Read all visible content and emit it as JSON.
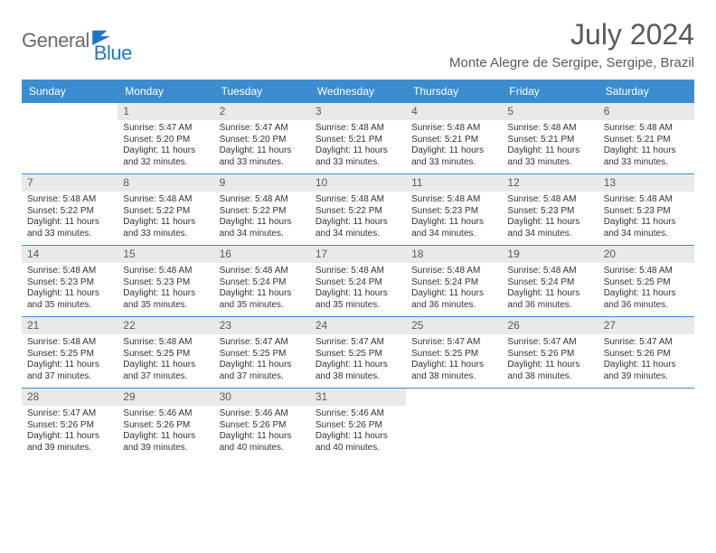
{
  "brand": {
    "part1": "General",
    "part2": "Blue"
  },
  "title": "July 2024",
  "location": "Monte Alegre de Sergipe, Sergipe, Brazil",
  "colors": {
    "header_bg": "#3b8dd0",
    "header_text": "#ffffff",
    "daynum_bg": "#e9e9e9",
    "text": "#333333",
    "rule": "#3b8dd0",
    "brand_gray": "#6b6b6b",
    "brand_blue": "#1f77c4"
  },
  "weekdays": [
    "Sunday",
    "Monday",
    "Tuesday",
    "Wednesday",
    "Thursday",
    "Friday",
    "Saturday"
  ],
  "weeks": [
    [
      {
        "n": "",
        "lines": []
      },
      {
        "n": "1",
        "lines": [
          "Sunrise: 5:47 AM",
          "Sunset: 5:20 PM",
          "Daylight: 11 hours and 32 minutes."
        ]
      },
      {
        "n": "2",
        "lines": [
          "Sunrise: 5:47 AM",
          "Sunset: 5:20 PM",
          "Daylight: 11 hours and 33 minutes."
        ]
      },
      {
        "n": "3",
        "lines": [
          "Sunrise: 5:48 AM",
          "Sunset: 5:21 PM",
          "Daylight: 11 hours and 33 minutes."
        ]
      },
      {
        "n": "4",
        "lines": [
          "Sunrise: 5:48 AM",
          "Sunset: 5:21 PM",
          "Daylight: 11 hours and 33 minutes."
        ]
      },
      {
        "n": "5",
        "lines": [
          "Sunrise: 5:48 AM",
          "Sunset: 5:21 PM",
          "Daylight: 11 hours and 33 minutes."
        ]
      },
      {
        "n": "6",
        "lines": [
          "Sunrise: 5:48 AM",
          "Sunset: 5:21 PM",
          "Daylight: 11 hours and 33 minutes."
        ]
      }
    ],
    [
      {
        "n": "7",
        "lines": [
          "Sunrise: 5:48 AM",
          "Sunset: 5:22 PM",
          "Daylight: 11 hours and 33 minutes."
        ]
      },
      {
        "n": "8",
        "lines": [
          "Sunrise: 5:48 AM",
          "Sunset: 5:22 PM",
          "Daylight: 11 hours and 33 minutes."
        ]
      },
      {
        "n": "9",
        "lines": [
          "Sunrise: 5:48 AM",
          "Sunset: 5:22 PM",
          "Daylight: 11 hours and 34 minutes."
        ]
      },
      {
        "n": "10",
        "lines": [
          "Sunrise: 5:48 AM",
          "Sunset: 5:22 PM",
          "Daylight: 11 hours and 34 minutes."
        ]
      },
      {
        "n": "11",
        "lines": [
          "Sunrise: 5:48 AM",
          "Sunset: 5:23 PM",
          "Daylight: 11 hours and 34 minutes."
        ]
      },
      {
        "n": "12",
        "lines": [
          "Sunrise: 5:48 AM",
          "Sunset: 5:23 PM",
          "Daylight: 11 hours and 34 minutes."
        ]
      },
      {
        "n": "13",
        "lines": [
          "Sunrise: 5:48 AM",
          "Sunset: 5:23 PM",
          "Daylight: 11 hours and 34 minutes."
        ]
      }
    ],
    [
      {
        "n": "14",
        "lines": [
          "Sunrise: 5:48 AM",
          "Sunset: 5:23 PM",
          "Daylight: 11 hours and 35 minutes."
        ]
      },
      {
        "n": "15",
        "lines": [
          "Sunrise: 5:48 AM",
          "Sunset: 5:23 PM",
          "Daylight: 11 hours and 35 minutes."
        ]
      },
      {
        "n": "16",
        "lines": [
          "Sunrise: 5:48 AM",
          "Sunset: 5:24 PM",
          "Daylight: 11 hours and 35 minutes."
        ]
      },
      {
        "n": "17",
        "lines": [
          "Sunrise: 5:48 AM",
          "Sunset: 5:24 PM",
          "Daylight: 11 hours and 35 minutes."
        ]
      },
      {
        "n": "18",
        "lines": [
          "Sunrise: 5:48 AM",
          "Sunset: 5:24 PM",
          "Daylight: 11 hours and 36 minutes."
        ]
      },
      {
        "n": "19",
        "lines": [
          "Sunrise: 5:48 AM",
          "Sunset: 5:24 PM",
          "Daylight: 11 hours and 36 minutes."
        ]
      },
      {
        "n": "20",
        "lines": [
          "Sunrise: 5:48 AM",
          "Sunset: 5:25 PM",
          "Daylight: 11 hours and 36 minutes."
        ]
      }
    ],
    [
      {
        "n": "21",
        "lines": [
          "Sunrise: 5:48 AM",
          "Sunset: 5:25 PM",
          "Daylight: 11 hours and 37 minutes."
        ]
      },
      {
        "n": "22",
        "lines": [
          "Sunrise: 5:48 AM",
          "Sunset: 5:25 PM",
          "Daylight: 11 hours and 37 minutes."
        ]
      },
      {
        "n": "23",
        "lines": [
          "Sunrise: 5:47 AM",
          "Sunset: 5:25 PM",
          "Daylight: 11 hours and 37 minutes."
        ]
      },
      {
        "n": "24",
        "lines": [
          "Sunrise: 5:47 AM",
          "Sunset: 5:25 PM",
          "Daylight: 11 hours and 38 minutes."
        ]
      },
      {
        "n": "25",
        "lines": [
          "Sunrise: 5:47 AM",
          "Sunset: 5:25 PM",
          "Daylight: 11 hours and 38 minutes."
        ]
      },
      {
        "n": "26",
        "lines": [
          "Sunrise: 5:47 AM",
          "Sunset: 5:26 PM",
          "Daylight: 11 hours and 38 minutes."
        ]
      },
      {
        "n": "27",
        "lines": [
          "Sunrise: 5:47 AM",
          "Sunset: 5:26 PM",
          "Daylight: 11 hours and 39 minutes."
        ]
      }
    ],
    [
      {
        "n": "28",
        "lines": [
          "Sunrise: 5:47 AM",
          "Sunset: 5:26 PM",
          "Daylight: 11 hours and 39 minutes."
        ]
      },
      {
        "n": "29",
        "lines": [
          "Sunrise: 5:46 AM",
          "Sunset: 5:26 PM",
          "Daylight: 11 hours and 39 minutes."
        ]
      },
      {
        "n": "30",
        "lines": [
          "Sunrise: 5:46 AM",
          "Sunset: 5:26 PM",
          "Daylight: 11 hours and 40 minutes."
        ]
      },
      {
        "n": "31",
        "lines": [
          "Sunrise: 5:46 AM",
          "Sunset: 5:26 PM",
          "Daylight: 11 hours and 40 minutes."
        ]
      },
      {
        "n": "",
        "lines": []
      },
      {
        "n": "",
        "lines": []
      },
      {
        "n": "",
        "lines": []
      }
    ]
  ]
}
